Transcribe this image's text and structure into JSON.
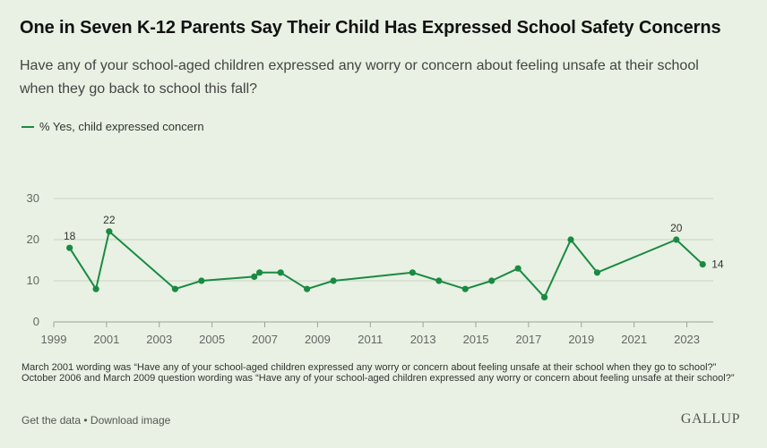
{
  "title": "One in Seven K-12 Parents Say Their Child Has Expressed School Safety Concerns",
  "subtitle": "Have any of your school-aged children expressed any worry or concern about feeling unsafe at their school when they go back to school this fall?",
  "note": "March 2001 wording was “Have any of your school-aged children expressed any worry or concern about feeling unsafe at their school when they go to school?” October 2006 and March 2009 question wording was “Have any of your school-aged children expressed any worry or concern about feeling unsafe at their school?”",
  "footer": {
    "get_data": "Get the data",
    "separator": " • ",
    "download": "Download image",
    "brand": "GALLUP"
  },
  "colors": {
    "series": "#1a8a42",
    "grid": "#c9d4c3",
    "background": "#e8f1e3"
  },
  "chart_data": {
    "type": "line",
    "series": [
      {
        "name": "% Yes, child expressed concern",
        "points": [
          {
            "x": 1999.6,
            "y": 18
          },
          {
            "x": 2000.6,
            "y": 8
          },
          {
            "x": 2001.1,
            "y": 22
          },
          {
            "x": 2003.6,
            "y": 8
          },
          {
            "x": 2004.6,
            "y": 10
          },
          {
            "x": 2006.6,
            "y": 11
          },
          {
            "x": 2006.8,
            "y": 12
          },
          {
            "x": 2007.6,
            "y": 12
          },
          {
            "x": 2008.6,
            "y": 8
          },
          {
            "x": 2009.6,
            "y": 10
          },
          {
            "x": 2012.6,
            "y": 12
          },
          {
            "x": 2013.6,
            "y": 10
          },
          {
            "x": 2014.6,
            "y": 8
          },
          {
            "x": 2015.6,
            "y": 10
          },
          {
            "x": 2016.6,
            "y": 13
          },
          {
            "x": 2017.6,
            "y": 6
          },
          {
            "x": 2018.6,
            "y": 20
          },
          {
            "x": 2019.6,
            "y": 12
          },
          {
            "x": 2022.6,
            "y": 20
          },
          {
            "x": 2023.6,
            "y": 14
          }
        ]
      }
    ],
    "data_labels": [
      {
        "x": 1999.6,
        "text": "18"
      },
      {
        "x": 2001.1,
        "text": "22"
      },
      {
        "x": 2022.6,
        "text": "20"
      },
      {
        "x": 2023.6,
        "text": "14"
      }
    ],
    "x_ticks": [
      "1999",
      "2001",
      "2003",
      "2005",
      "2007",
      "2009",
      "2011",
      "2013",
      "2015",
      "2017",
      "2019",
      "2021",
      "2023"
    ],
    "y_ticks": [
      "0",
      "10",
      "20",
      "30"
    ],
    "xlim": [
      1999,
      2024
    ],
    "ylim": [
      0,
      30
    ],
    "grid": true,
    "legend": "top-left"
  }
}
